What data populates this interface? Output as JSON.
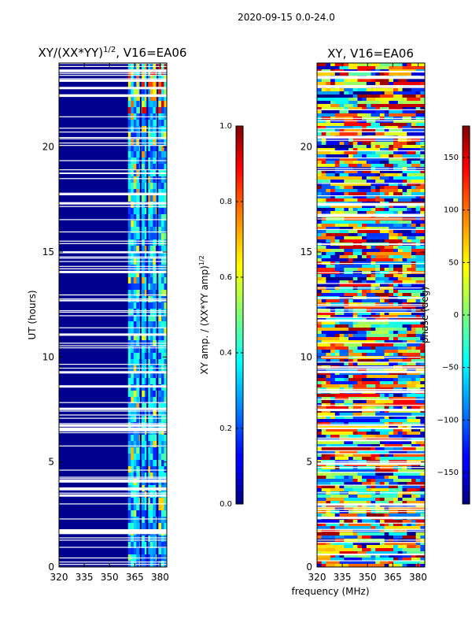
{
  "figure": {
    "suptitle": "2020-09-15 0.0-24.0",
    "xlabel": "frequency (MHz)"
  },
  "chart_data": [
    {
      "type": "heatmap",
      "title_main": "XY/(XX*YY)",
      "title_sup": "1/2",
      "title_tail": ", V16=EA06",
      "ylabel": "UT (hours)",
      "xlim": [
        320,
        384
      ],
      "ylim": [
        0,
        24
      ],
      "xticks": [
        320,
        335,
        350,
        365,
        380
      ],
      "yticks": [
        0,
        5,
        10,
        15,
        20
      ],
      "colorbar": {
        "label_main": "XY amp. / (XX*YY amp)",
        "label_sup": "1/2",
        "range": [
          0.0,
          1.0
        ],
        "ticks": [
          "0.0",
          "0.2",
          "0.4",
          "0.6",
          "0.8",
          "1.0"
        ],
        "tick_values": [
          0.0,
          0.2,
          0.4,
          0.6,
          0.8,
          1.0
        ]
      },
      "bright_band_mhz": [
        361,
        384
      ],
      "background_value": 0.0
    },
    {
      "type": "heatmap",
      "title": "XY, V16=EA06",
      "ylabel": "",
      "xlim": [
        320,
        384
      ],
      "ylim": [
        0,
        24
      ],
      "xticks": [
        320,
        335,
        350,
        365,
        380
      ],
      "yticks": [
        0,
        5,
        10,
        15,
        20
      ],
      "colorbar": {
        "label": "phase (deg)",
        "range": [
          -180,
          180
        ],
        "ticks": [
          "150",
          "100",
          "50",
          "0",
          "−50",
          "−100",
          "−150"
        ],
        "tick_values": [
          150,
          100,
          50,
          0,
          -50,
          -100,
          -150
        ]
      }
    }
  ]
}
